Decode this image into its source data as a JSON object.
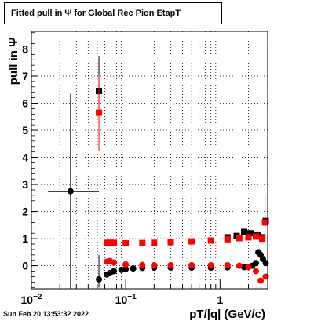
{
  "title": "Fitted pull in  Ψ  for Global Rec Pion EtapT",
  "timestamp": "Sun Feb 20 13:53:32 2022",
  "chart_data": {
    "type": "scatter",
    "title": "Fitted pull in  Ψ  for Global Rec Pion EtapT",
    "xlabel": "pT/|q| (GeV/c)",
    "ylabel": "pull in  Ψ",
    "xscale": "log",
    "xlim": [
      0.01,
      3.2
    ],
    "ylim": [
      -0.85,
      8.65
    ],
    "grid": true,
    "x_ticks": [
      {
        "value": 0.01,
        "base": "10",
        "exp": "−2"
      },
      {
        "value": 0.1,
        "base": "10",
        "exp": "−1"
      },
      {
        "value": 1,
        "base": "1",
        "exp": ""
      }
    ],
    "y_ticks": [
      0,
      1,
      2,
      3,
      4,
      5,
      6,
      7,
      8
    ],
    "series": [
      {
        "color": "#000000",
        "marker": "circle",
        "points": [
          {
            "x": 0.026,
            "y": 2.75,
            "xerr": [
              0.011,
              0.026
            ],
            "yerr": [
              3.6,
              3.6
            ]
          },
          {
            "x": 0.052,
            "y": -0.5,
            "yerr": [
              0.3,
              0.9
            ]
          },
          {
            "x": 0.063,
            "y": -0.32
          },
          {
            "x": 0.068,
            "y": -0.27
          },
          {
            "x": 0.075,
            "y": -0.2
          },
          {
            "x": 0.09,
            "y": -0.15
          },
          {
            "x": 0.1,
            "y": -0.12
          },
          {
            "x": 0.12,
            "y": -0.1
          },
          {
            "x": 0.15,
            "y": -0.08
          },
          {
            "x": 0.2,
            "y": -0.07
          },
          {
            "x": 0.3,
            "y": -0.07
          },
          {
            "x": 0.5,
            "y": -0.07
          },
          {
            "x": 0.8,
            "y": -0.07
          },
          {
            "x": 1.2,
            "y": -0.06
          },
          {
            "x": 1.8,
            "y": -0.05
          },
          {
            "x": 2.2,
            "y": 0.0
          },
          {
            "x": 2.4,
            "y": 0.1
          },
          {
            "x": 2.55,
            "y": 0.5
          },
          {
            "x": 2.7,
            "y": 0.4
          },
          {
            "x": 2.85,
            "y": 0.25
          },
          {
            "x": 3.05,
            "y": 0.1
          }
        ]
      },
      {
        "color": "#000000",
        "marker": "square",
        "points": [
          {
            "x": 0.052,
            "y": 6.45,
            "yerr": [
              0.9,
              1.3
            ]
          },
          {
            "x": 1.2,
            "y": 1.05
          },
          {
            "x": 1.5,
            "y": 1.1
          },
          {
            "x": 1.8,
            "y": 1.25
          },
          {
            "x": 2.1,
            "y": 1.2
          },
          {
            "x": 2.5,
            "y": 1.15
          },
          {
            "x": 2.8,
            "y": 1.05
          },
          {
            "x": 3.05,
            "y": 1.65
          }
        ]
      },
      {
        "color": "#ff0000",
        "marker": "circle",
        "points": [
          {
            "x": 0.063,
            "y": 0.15
          },
          {
            "x": 0.068,
            "y": 0.18
          },
          {
            "x": 0.075,
            "y": 0.12
          },
          {
            "x": 0.1,
            "y": 0.05
          },
          {
            "x": 0.15,
            "y": 0.03
          },
          {
            "x": 0.2,
            "y": 0.02
          },
          {
            "x": 0.3,
            "y": 0.02
          },
          {
            "x": 0.5,
            "y": 0.02
          },
          {
            "x": 0.8,
            "y": 0.02
          },
          {
            "x": 1.2,
            "y": 0.02
          },
          {
            "x": 1.6,
            "y": 0.0
          },
          {
            "x": 2.0,
            "y": -0.05
          },
          {
            "x": 2.4,
            "y": -0.2
          },
          {
            "x": 2.7,
            "y": -0.55
          },
          {
            "x": 3.05,
            "y": -0.4
          }
        ]
      },
      {
        "color": "#ff0000",
        "marker": "square",
        "points": [
          {
            "x": 0.052,
            "y": 5.65,
            "yerr": [
              1.4,
              1.4
            ]
          },
          {
            "x": 0.063,
            "y": 0.85
          },
          {
            "x": 0.068,
            "y": 0.85
          },
          {
            "x": 0.075,
            "y": 0.85
          },
          {
            "x": 0.1,
            "y": 0.83
          },
          {
            "x": 0.15,
            "y": 0.84
          },
          {
            "x": 0.2,
            "y": 0.85
          },
          {
            "x": 0.3,
            "y": 0.87
          },
          {
            "x": 0.5,
            "y": 0.9
          },
          {
            "x": 0.8,
            "y": 0.93
          },
          {
            "x": 1.2,
            "y": 0.98
          },
          {
            "x": 1.6,
            "y": 1.02
          },
          {
            "x": 2.0,
            "y": 1.05
          },
          {
            "x": 2.4,
            "y": 1.08
          },
          {
            "x": 2.8,
            "y": 1.0
          },
          {
            "x": 3.0,
            "y": 1.6,
            "yerr": [
              0.9,
              1.0
            ]
          }
        ]
      }
    ]
  }
}
